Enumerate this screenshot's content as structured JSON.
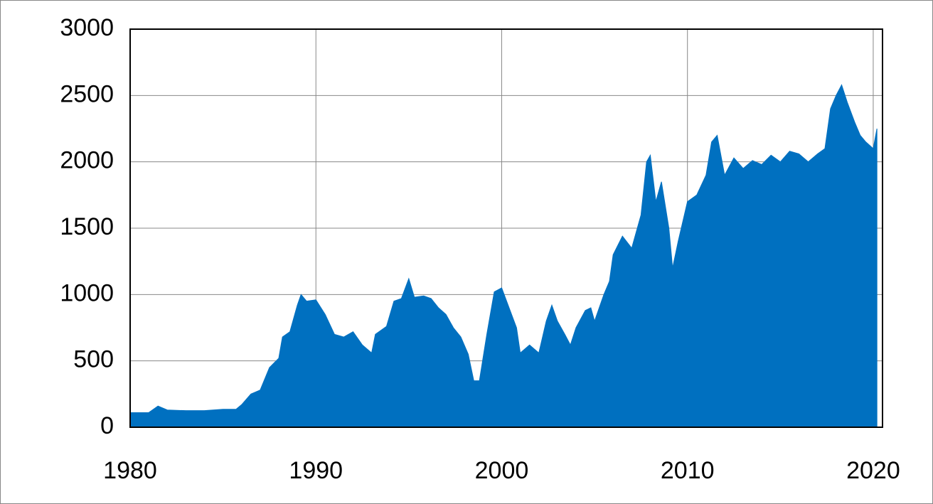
{
  "chart_data": {
    "type": "area",
    "color": "#0070c0",
    "grid": true,
    "xlim": [
      1980,
      2020.5
    ],
    "ylim": [
      0,
      3000
    ],
    "xticks": [
      1980,
      1990,
      2000,
      2010,
      2020
    ],
    "yticks": [
      0,
      500,
      1000,
      1500,
      2000,
      2500,
      3000
    ],
    "x": [
      1980,
      1981,
      1981.5,
      1982,
      1983,
      1984,
      1985,
      1985.7,
      1986,
      1986.5,
      1987,
      1987.5,
      1988,
      1988.2,
      1988.6,
      1989,
      1989.2,
      1989.5,
      1990,
      1990.5,
      1991,
      1991.5,
      1992,
      1992.5,
      1993,
      1993.2,
      1993.8,
      1994.2,
      1994.6,
      1995,
      1995.3,
      1995.8,
      1996.2,
      1996.6,
      1997,
      1997.4,
      1997.8,
      1998.2,
      1998.5,
      1998.8,
      1999.2,
      1999.6,
      2000,
      2000.4,
      2000.8,
      2001,
      2001.5,
      2002,
      2002.4,
      2002.7,
      2003,
      2003.4,
      2003.7,
      2004,
      2004.5,
      2004.8,
      2005,
      2005.5,
      2005.8,
      2006,
      2006.5,
      2007,
      2007.5,
      2007.8,
      2008,
      2008.3,
      2008.6,
      2009,
      2009.2,
      2009.5,
      2010,
      2010.5,
      2011,
      2011.3,
      2011.6,
      2012,
      2012.5,
      2013,
      2013.5,
      2014,
      2014.5,
      2015,
      2015.5,
      2016,
      2016.5,
      2017,
      2017.4,
      2017.7,
      2018,
      2018.3,
      2018.6,
      2019,
      2019.3,
      2019.6,
      2020,
      2020.2
    ],
    "values": [
      110,
      110,
      160,
      130,
      125,
      125,
      135,
      135,
      170,
      250,
      280,
      450,
      520,
      680,
      720,
      920,
      1000,
      950,
      960,
      850,
      700,
      680,
      720,
      620,
      560,
      700,
      760,
      950,
      970,
      1120,
      980,
      990,
      970,
      900,
      850,
      750,
      680,
      550,
      350,
      350,
      700,
      1020,
      1050,
      900,
      750,
      560,
      620,
      560,
      800,
      920,
      800,
      700,
      620,
      750,
      880,
      900,
      800,
      1000,
      1100,
      1300,
      1440,
      1350,
      1600,
      2000,
      2050,
      1700,
      1850,
      1500,
      1200,
      1400,
      1700,
      1750,
      1900,
      2150,
      2200,
      1900,
      2030,
      1950,
      2010,
      1980,
      2050,
      2000,
      2080,
      2060,
      2000,
      2060,
      2100,
      2400,
      2500,
      2580,
      2450,
      2300,
      2200,
      2150,
      2100,
      2250
    ]
  }
}
